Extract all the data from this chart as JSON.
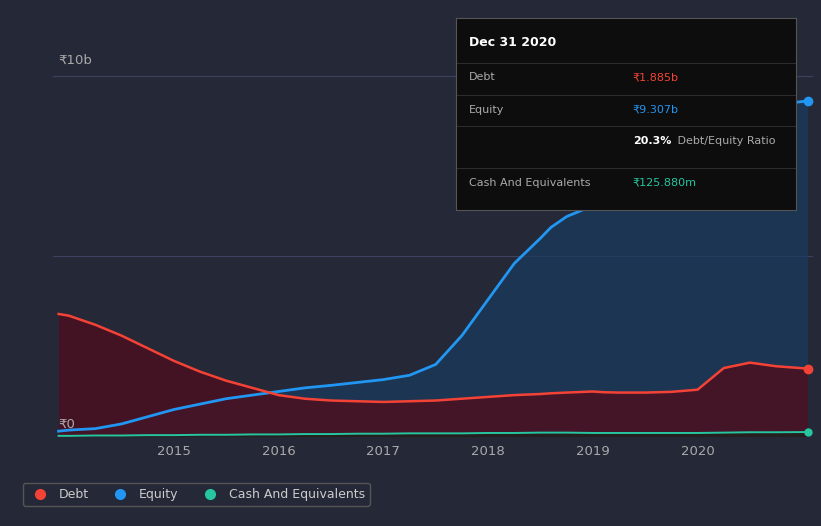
{
  "background_color": "#252836",
  "plot_bg_color": "#252836",
  "ylabel_10b": "₹10b",
  "ylabel_0": "₹0",
  "x_years": [
    2013.9,
    2014.0,
    2014.25,
    2014.5,
    2014.75,
    2015.0,
    2015.25,
    2015.5,
    2015.75,
    2016.0,
    2016.25,
    2016.5,
    2016.75,
    2017.0,
    2017.25,
    2017.5,
    2017.75,
    2018.0,
    2018.1,
    2018.25,
    2018.5,
    2018.6,
    2018.75,
    2019.0,
    2019.1,
    2019.25,
    2019.5,
    2019.75,
    2020.0,
    2020.25,
    2020.5,
    2020.75,
    2021.05
  ],
  "equity": [
    0.15,
    0.18,
    0.22,
    0.35,
    0.55,
    0.75,
    0.9,
    1.05,
    1.15,
    1.25,
    1.35,
    1.42,
    1.5,
    1.58,
    1.7,
    2.0,
    2.8,
    3.8,
    4.2,
    4.8,
    5.5,
    5.8,
    6.1,
    6.4,
    6.6,
    6.9,
    7.3,
    7.8,
    8.3,
    8.7,
    9.0,
    9.2,
    9.307
  ],
  "debt": [
    3.4,
    3.35,
    3.1,
    2.8,
    2.45,
    2.1,
    1.8,
    1.55,
    1.35,
    1.15,
    1.05,
    1.0,
    0.98,
    0.96,
    0.98,
    1.0,
    1.05,
    1.1,
    1.12,
    1.15,
    1.18,
    1.2,
    1.22,
    1.25,
    1.23,
    1.22,
    1.22,
    1.24,
    1.3,
    1.9,
    2.05,
    1.95,
    1.885
  ],
  "cash": [
    0.02,
    0.02,
    0.03,
    0.03,
    0.04,
    0.04,
    0.05,
    0.05,
    0.06,
    0.06,
    0.07,
    0.07,
    0.08,
    0.08,
    0.09,
    0.09,
    0.09,
    0.1,
    0.1,
    0.1,
    0.11,
    0.11,
    0.11,
    0.1,
    0.1,
    0.1,
    0.1,
    0.1,
    0.1,
    0.11,
    0.12,
    0.12,
    0.12588
  ],
  "equity_color": "#2196f3",
  "debt_color": "#f44336",
  "cash_color": "#26c6a0",
  "equity_fill": "#1a3a5c",
  "debt_fill": "#4a1020",
  "x_ticks": [
    2015,
    2016,
    2017,
    2018,
    2019,
    2020
  ],
  "x_tick_labels": [
    "2015",
    "2016",
    "2017",
    "2018",
    "2019",
    "2020"
  ],
  "xlim_left": 2013.85,
  "xlim_right": 2021.1,
  "ylim": [
    0,
    10.5
  ],
  "y_top_line": 10.0,
  "y_mid_line": 5.0,
  "grid_color": "#3d4260",
  "legend_items": [
    "Debt",
    "Equity",
    "Cash And Equivalents"
  ],
  "legend_colors": [
    "#f44336",
    "#2196f3",
    "#26c6a0"
  ],
  "infobox": {
    "title": "Dec 31 2020",
    "debt_label": "Debt",
    "debt_value": "₹1.885b",
    "equity_label": "Equity",
    "equity_value": "₹9.307b",
    "ratio_value": "20.3%",
    "ratio_label": " Debt/Equity Ratio",
    "cash_label": "Cash And Equivalents",
    "cash_value": "₹125.880m",
    "bg_color": "#0d0d0d",
    "border_color": "#555555",
    "title_color": "#ffffff",
    "label_color": "#aaaaaa",
    "debt_val_color": "#f44336",
    "equity_val_color": "#2196f3",
    "cash_val_color": "#26c6a0",
    "ratio_val_color": "#ffffff"
  }
}
